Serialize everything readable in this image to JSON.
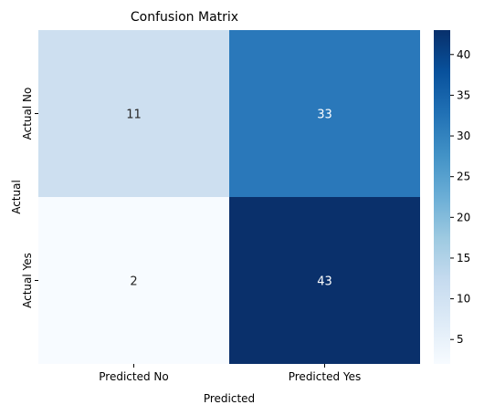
{
  "chart_data": {
    "type": "heatmap",
    "title": "Confusion Matrix",
    "xlabel": "Predicted",
    "ylabel": "Actual",
    "x_categories": [
      "Predicted No",
      "Predicted Yes"
    ],
    "y_categories": [
      "Actual No",
      "Actual Yes"
    ],
    "values": [
      [
        11,
        33
      ],
      [
        2,
        43
      ]
    ],
    "annotations": [
      [
        "11",
        "33"
      ],
      [
        "2",
        "43"
      ]
    ],
    "colormap": "Blues",
    "color_range": [
      2,
      43
    ],
    "colorbar_ticks": [
      5,
      10,
      15,
      20,
      25,
      30,
      35,
      40
    ],
    "colorbar_tick_labels": [
      "5",
      "10",
      "15",
      "20",
      "25",
      "30",
      "35",
      "40"
    ],
    "cell_colors": [
      [
        "#cddff0",
        "#2a78ba"
      ],
      [
        "#f7fbff",
        "#0a306b"
      ]
    ],
    "text_colors": [
      [
        "#262626",
        "#ffffff"
      ],
      [
        "#262626",
        "#ffffff"
      ]
    ],
    "legend": "colorbar-right",
    "grid": false
  }
}
